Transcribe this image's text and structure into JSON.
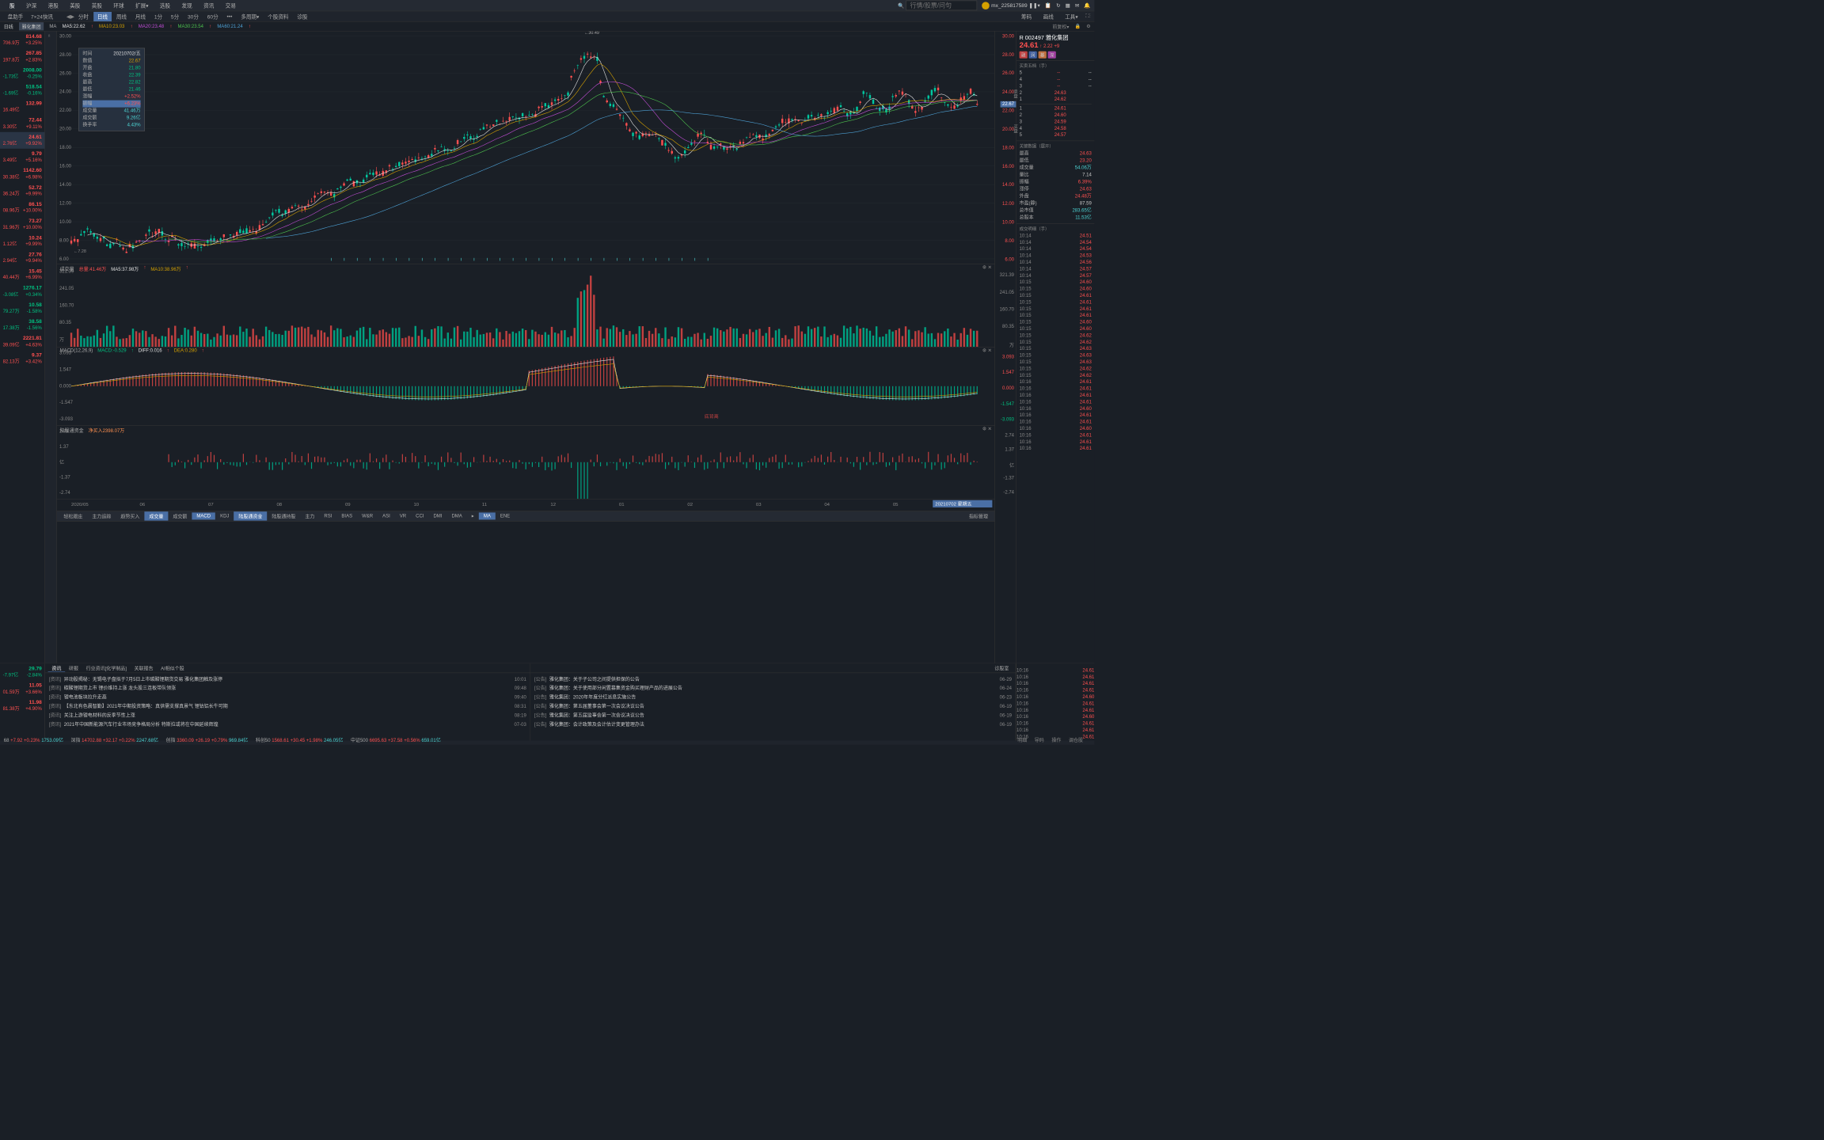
{
  "topNav": {
    "items": [
      "股",
      "沪深",
      "港股",
      "美股",
      "英股",
      "环球",
      "扩展▾",
      "选股",
      "发现",
      "资讯",
      "交易"
    ],
    "activeIndex": 0,
    "searchPlaceholder": "行情/股票/问句",
    "username": "mx_225817589 ❚❚▾",
    "icons": [
      "bell",
      "refresh",
      "grid",
      "mail",
      "sound"
    ]
  },
  "subNav": {
    "leftItems": [
      "盘助手",
      "7×24快讯"
    ],
    "periods": [
      "分时",
      "日线",
      "周线",
      "月线",
      "1分",
      "5分",
      "30分",
      "60分",
      "•••",
      "多周期▾",
      "个股资料",
      "诊股"
    ],
    "activePeriod": 1,
    "rightItems": [
      "筹码",
      "画线",
      "工具▾"
    ]
  },
  "maBar": {
    "prefix": "日线",
    "stock": "雅化集团",
    "label": "MA",
    "ma5": "MA5:22.62",
    "ma10": "MA10:23.03",
    "ma20": "MA20:23.48",
    "ma30": "MA30:23.54",
    "ma60": "MA60:21.24",
    "rightLabel": "前复权▾"
  },
  "watchlist": [
    {
      "price": "814.68",
      "vol": "706.9万",
      "chg": "+3.25%",
      "color": "red"
    },
    {
      "price": "267.85",
      "vol": "197.8万",
      "chg": "+2.83%",
      "color": "red"
    },
    {
      "price": "2008.00",
      "vol": "-1.73亿",
      "chg": "-0.25%",
      "color": "green"
    },
    {
      "price": "518.54",
      "vol": "-1.69亿",
      "chg": "-0.16%",
      "color": "green"
    },
    {
      "price": "132.99",
      "vol": "16.49亿",
      "chg": "",
      "color": "red"
    },
    {
      "price": "72.44",
      "vol": "3.30亿",
      "chg": "+9.11%",
      "color": "red"
    },
    {
      "price": "24.61",
      "vol": "2.76亿",
      "chg": "+9.92%",
      "color": "red",
      "selected": true
    },
    {
      "price": "9.79",
      "vol": "3.49亿",
      "chg": "+5.16%",
      "color": "red"
    },
    {
      "price": "1142.60",
      "vol": "30.38亿",
      "chg": "+6.98%",
      "color": "red"
    },
    {
      "price": "52.72",
      "vol": "36.24万",
      "chg": "+9.99%",
      "color": "red"
    },
    {
      "price": "86.15",
      "vol": "08.96万",
      "chg": "+10.00%",
      "color": "red"
    },
    {
      "price": "73.27",
      "vol": "31.96万",
      "chg": "+10.00%",
      "color": "red"
    },
    {
      "price": "10.24",
      "vol": "1.12亿",
      "chg": "+9.99%",
      "color": "red"
    },
    {
      "price": "27.76",
      "vol": "2.94亿",
      "chg": "+9.94%",
      "color": "red"
    },
    {
      "price": "15.45",
      "vol": "40.44万",
      "chg": "+6.99%",
      "color": "red"
    },
    {
      "price": "1276.17",
      "vol": "-3.08亿",
      "chg": "+0.34%",
      "color": "green"
    },
    {
      "price": "10.58",
      "vol": "79.27万",
      "chg": "-1.58%",
      "color": "green"
    },
    {
      "price": "38.58",
      "vol": "17.38万",
      "chg": "-1.56%",
      "color": "green"
    },
    {
      "price": "2221.81",
      "vol": "39.09亿",
      "chg": "+4.63%",
      "color": "red"
    },
    {
      "price": "9.37",
      "vol": "82.13万",
      "chg": "+3.42%",
      "color": "red"
    },
    {
      "price": "29.79",
      "vol": "-7.97亿",
      "chg": "-2.84%",
      "color": "green"
    },
    {
      "price": "11.05",
      "vol": "01.59万",
      "chg": "+3.66%",
      "color": "red"
    },
    {
      "price": "11.98",
      "vol": "81.38万",
      "chg": "+4.90%",
      "color": "red"
    }
  ],
  "tooltip": {
    "date": "20210702/五",
    "rows": [
      {
        "label": "时间",
        "value": "20210702/五",
        "color": "#e0e0e0"
      },
      {
        "label": "数值",
        "value": "22.67",
        "color": "#d4a000"
      },
      {
        "label": "开盘",
        "value": "21.80",
        "color": "#00c080"
      },
      {
        "label": "收盘",
        "value": "22.39",
        "color": "#00c080"
      },
      {
        "label": "最高",
        "value": "22.82",
        "color": "#00c080"
      },
      {
        "label": "最低",
        "value": "21.46",
        "color": "#00c080"
      },
      {
        "label": "涨幅",
        "value": "+2.52%",
        "color": "#ff5050"
      },
      {
        "label": "振幅",
        "value": "+6.23%",
        "color": "#ff5050",
        "hl": true
      },
      {
        "label": "成交量",
        "value": "41.46万",
        "color": "#4dd4d4"
      },
      {
        "label": "成交额",
        "value": "9.26亿",
        "color": "#4dd4d4"
      },
      {
        "label": "换手率",
        "value": "4.43%",
        "color": "#4dd4d4"
      }
    ]
  },
  "mainChart": {
    "yMin": 6,
    "yMax": 30,
    "yTicks": [
      6,
      8,
      10,
      12,
      14,
      16,
      18,
      20,
      22,
      24,
      26,
      28,
      30
    ],
    "lowLabel": "←7.28",
    "highLabel": "←30.49",
    "crosshairPrice": "22.67",
    "colors": {
      "ma5": "#e0e0e0",
      "ma10": "#d4a000",
      "ma20": "#c04dd4",
      "ma30": "#4dc04d",
      "ma60": "#4da0d4"
    }
  },
  "volumePane": {
    "title": "成交量",
    "total": "总量:41.46万",
    "ma5": "MA5:37.98万",
    "ma10": "MA10:38.96万",
    "yTicks": [
      "321.39",
      "241.05",
      "160.70",
      "80.35",
      "万"
    ]
  },
  "macdPane": {
    "title": "MACD(12,26,9)",
    "macd": "MACD:-0.529",
    "diff": "DIFF:0.016",
    "dea": "DEA:0.280",
    "yTicks": [
      "3.093",
      "1.547",
      "0.000",
      "-1.547",
      "-3.093"
    ],
    "annotation": "底背离"
  },
  "flowPane": {
    "title": "陆股通资金",
    "value": "净买入2398.07万",
    "yTicks": [
      "2.74",
      "1.37",
      "亿",
      "-1.37",
      "-2.74"
    ]
  },
  "timeline": {
    "labels": [
      "2020/05",
      "06",
      "07",
      "08",
      "09",
      "10",
      "11",
      "12",
      "01",
      "02",
      "03",
      "04",
      "05",
      "06"
    ],
    "currentDate": "20210702 星期五"
  },
  "indicatorTabs": {
    "row1": [
      "轻松跟庄",
      "主力追踪",
      "趋势买入",
      "成交量",
      "成交额",
      "MACD",
      "KDJ",
      "陆股通资金",
      "陆股通持股",
      "主力",
      "RSI",
      "BIAS",
      "W&R",
      "ASI",
      "VR",
      "CCI",
      "DMI",
      "DMA",
      "▸",
      "MA",
      "ENE"
    ],
    "activeIndices": [
      3,
      5,
      7,
      19
    ],
    "rightLabel": "指标管理"
  },
  "stockInfo": {
    "code": "R 002497",
    "name": "雅化集团",
    "price": "24.61",
    "change": "2.22",
    "changePct": "+9",
    "badges": [
      "融",
      "润",
      "基",
      "深"
    ],
    "orderbook": {
      "title": "买卖五档（手）",
      "sells": [
        {
          "level": "5",
          "price": "--",
          "qty": "--"
        },
        {
          "level": "4",
          "price": "--",
          "qty": "--"
        },
        {
          "level": "3",
          "price": "--",
          "qty": "--"
        },
        {
          "level": "2",
          "price": "24.63",
          "qty": ""
        },
        {
          "level": "1",
          "price": "24.62",
          "qty": ""
        }
      ],
      "buys": [
        {
          "level": "1",
          "price": "24.61",
          "qty": ""
        },
        {
          "level": "2",
          "price": "24.60",
          "qty": ""
        },
        {
          "level": "3",
          "price": "24.59",
          "qty": ""
        },
        {
          "level": "4",
          "price": "24.58",
          "qty": ""
        },
        {
          "level": "5",
          "price": "24.57",
          "qty": ""
        }
      ]
    },
    "keyData": {
      "title": "关键数据（展开）",
      "rows": [
        {
          "label": "最高",
          "value": "24.63",
          "color": "red"
        },
        {
          "label": "最低",
          "value": "23.20",
          "color": "red"
        },
        {
          "label": "成交量",
          "value": "54.06万",
          "color": "cyan"
        },
        {
          "label": "量比",
          "value": "7.14",
          "color": ""
        },
        {
          "label": "振幅",
          "value": "6.39%",
          "color": "red"
        },
        {
          "label": "涨停",
          "value": "24.63",
          "color": "red"
        },
        {
          "label": "外盘",
          "value": "24.48万",
          "color": "red"
        },
        {
          "label": "市盈(静)",
          "value": "87.59",
          "color": ""
        },
        {
          "label": "总市值",
          "value": "283.65亿",
          "color": "cyan"
        },
        {
          "label": "总股本",
          "value": "11.53亿",
          "color": "cyan"
        }
      ]
    },
    "tickTitle": "成交明细（手）",
    "ticks": [
      {
        "time": "10:14",
        "price": "24.51",
        "color": "red"
      },
      {
        "time": "10:14",
        "price": "24.54",
        "color": "red"
      },
      {
        "time": "10:14",
        "price": "24.54",
        "color": "red"
      },
      {
        "time": "10:14",
        "price": "24.53",
        "color": "red"
      },
      {
        "time": "10:14",
        "price": "24.56",
        "color": "red"
      },
      {
        "time": "10:14",
        "price": "24.57",
        "color": "red"
      },
      {
        "time": "10:14",
        "price": "24.57",
        "color": "red"
      },
      {
        "time": "10:15",
        "price": "24.60",
        "color": "red"
      },
      {
        "time": "10:15",
        "price": "24.60",
        "color": "red"
      },
      {
        "time": "10:15",
        "price": "24.61",
        "color": "red"
      },
      {
        "time": "10:15",
        "price": "24.61",
        "color": "red"
      },
      {
        "time": "10:15",
        "price": "24.61",
        "color": "red"
      },
      {
        "time": "10:15",
        "price": "24.61",
        "color": "red"
      },
      {
        "time": "10:15",
        "price": "24.60",
        "color": "red"
      },
      {
        "time": "10:15",
        "price": "24.60",
        "color": "red"
      },
      {
        "time": "10:15",
        "price": "24.62",
        "color": "red"
      },
      {
        "time": "10:15",
        "price": "24.62",
        "color": "red"
      },
      {
        "time": "10:15",
        "price": "24.63",
        "color": "red"
      },
      {
        "time": "10:15",
        "price": "24.63",
        "color": "red"
      },
      {
        "time": "10:15",
        "price": "24.63",
        "color": "red"
      },
      {
        "time": "10:15",
        "price": "24.62",
        "color": "red"
      },
      {
        "time": "10:15",
        "price": "24.62",
        "color": "red"
      },
      {
        "time": "10:16",
        "price": "24.61",
        "color": "red"
      },
      {
        "time": "10:16",
        "price": "24.61",
        "color": "red"
      },
      {
        "time": "10:16",
        "price": "24.61",
        "color": "red"
      },
      {
        "time": "10:16",
        "price": "24.61",
        "color": "red"
      },
      {
        "time": "10:16",
        "price": "24.60",
        "color": "red"
      },
      {
        "time": "10:16",
        "price": "24.61",
        "color": "red"
      },
      {
        "time": "10:16",
        "price": "24.61",
        "color": "red"
      },
      {
        "time": "10:16",
        "price": "24.60",
        "color": "red"
      },
      {
        "time": "10:16",
        "price": "24.61",
        "color": "red"
      },
      {
        "time": "10:16",
        "price": "24.61",
        "color": "red"
      },
      {
        "time": "10:16",
        "price": "24.61",
        "color": "red"
      }
    ]
  },
  "news": {
    "tabs1": [
      "资讯",
      "研报",
      "行业资讯[化学制品]",
      "关联报告",
      "AI相似个股"
    ],
    "activeTab1": 0,
    "list1": [
      {
        "tag": "[资讯]",
        "title": "异动股揭秘：无锡电子盘拟于7月5日上市碳酸锂期货交易 雅化集团触及涨停",
        "time": "10:01"
      },
      {
        "tag": "[资讯]",
        "title": "碳酸锂期货上市 锂价维持上涨 龙头股三连板带队领涨",
        "time": "09:48"
      },
      {
        "tag": "[资讯]",
        "title": "锂电池板块拉升走高",
        "time": "09:40"
      },
      {
        "tag": "[资讯]",
        "title": "【东北有色晨智勤】2021年中期投资策略：真供需支撑真景气 锂钴铝长牛可期",
        "time": "08:31"
      },
      {
        "tag": "[资讯]",
        "title": "关注上游锂电材料的反季节性上涨",
        "time": "08:19"
      },
      {
        "tag": "[资讯]",
        "title": "2021年中国新能源汽车行业市场竞争格局分析 特斯拉或将在中国延续辉煌",
        "time": "07-03"
      }
    ],
    "tabs2": [
      "诊股室"
    ],
    "list2": [
      {
        "tag": "[公告]",
        "title": "雅化集团：关于子公司之间提供担保的公告",
        "time": "06-29"
      },
      {
        "tag": "[公告]",
        "title": "雅化集团：关于使用部分闲置募集资金购买理财产品的进展公告",
        "time": "06-24"
      },
      {
        "tag": "[公告]",
        "title": "雅化集团：2020年年度分红派息实施公告",
        "time": "06-23"
      },
      {
        "tag": "[公告]",
        "title": "雅化集团：第五届董事会第一次会议决议公告",
        "time": "06-19"
      },
      {
        "tag": "[公告]",
        "title": "雅化集团：第五届监事会第一次会议决议公告",
        "time": "06-19"
      },
      {
        "tag": "[公告]",
        "title": "雅化集团：会计政策及会计估计变更管理办法",
        "time": "06-19"
      }
    ]
  },
  "statusBar": {
    "items": [
      {
        "label": "68",
        "values": [
          "+7.92",
          "+0.23%",
          "1753.09亿"
        ],
        "colors": [
          "red",
          "red",
          "cyan"
        ]
      },
      {
        "label": "深指",
        "values": [
          "14702.88",
          "+32.17",
          "+0.22%",
          "2247.68亿"
        ],
        "colors": [
          "red",
          "red",
          "red",
          "cyan"
        ]
      },
      {
        "label": "创指",
        "values": [
          "3360.09",
          "+26.19",
          "+0.79%",
          "969.84亿"
        ],
        "colors": [
          "red",
          "red",
          "red",
          "cyan"
        ]
      },
      {
        "label": "科创50",
        "values": [
          "1568.61",
          "+30.45",
          "+1.98%",
          "246.05亿"
        ],
        "colors": [
          "red",
          "red",
          "red",
          "cyan"
        ]
      },
      {
        "label": "中证500",
        "values": [
          "6695.63",
          "+37.58",
          "+0.56%",
          "659.01亿"
        ],
        "colors": [
          "red",
          "red",
          "red",
          "cyan"
        ]
      }
    ],
    "rightLabels": [
      "明细",
      "导码",
      "操作",
      "调仓股"
    ]
  }
}
